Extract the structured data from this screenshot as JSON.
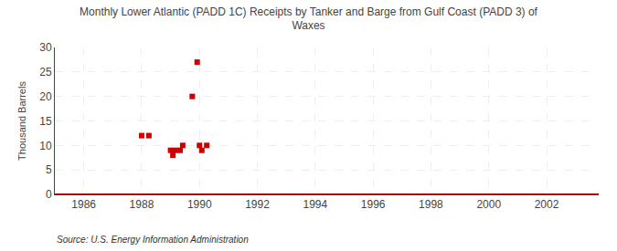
{
  "chart_data": {
    "type": "scatter",
    "title": "Monthly Lower Atlantic (PADD 1C) Receipts by Tanker and Barge from Gulf Coast (PADD 3) of\nWaxes",
    "ylabel": "Thousand Barrels",
    "annotations": [
      "Source: U.S. Energy Information Administration"
    ],
    "x": [
      1988.0,
      1988.25,
      1989.0,
      1989.08,
      1989.16,
      1989.33,
      1989.42,
      1989.75,
      1989.92,
      1990.0,
      1990.08,
      1990.25
    ],
    "values": [
      12,
      12,
      9,
      8,
      9,
      9,
      10,
      20,
      27,
      10,
      9,
      10
    ],
    "color": "#cc0000",
    "marker": "square",
    "reference_line": {
      "value": 0,
      "color": "#990000"
    },
    "xlim": [
      1985.0,
      2003.8
    ],
    "ylim": [
      0,
      30
    ],
    "xticks": [
      1986,
      1988,
      1990,
      1992,
      1994,
      1996,
      1998,
      2000,
      2002
    ],
    "yticks": [
      0,
      5,
      10,
      15,
      20,
      25,
      30
    ],
    "grid": true
  }
}
